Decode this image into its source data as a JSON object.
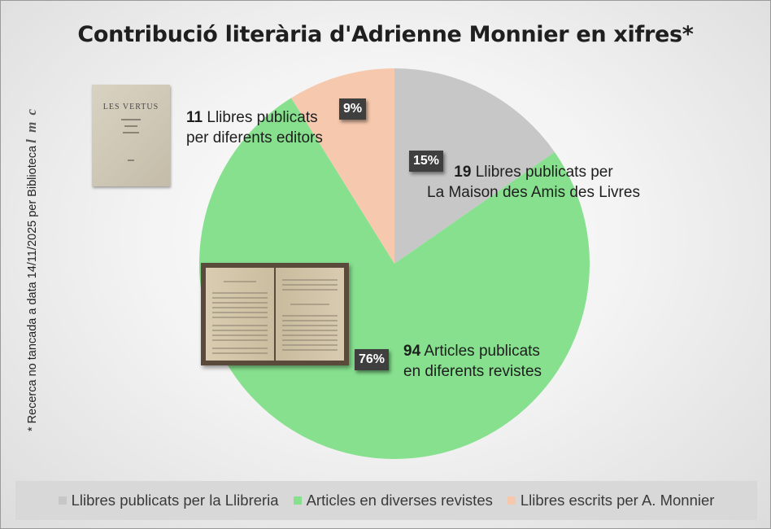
{
  "chart_data": {
    "type": "pie",
    "title": "Contribució literària d'Adrienne Monnier en xifres*",
    "side_note": "* Recerca no tancada a data 14/11/2025 per Biblioteca",
    "side_note_logo": "l m c",
    "slices": [
      {
        "legend": "Llibres publicats per la Llibreria",
        "value": 19,
        "percent_label": "15%",
        "count_label": "19",
        "desc_line1": "Llibres publicats per",
        "desc_line2": "La Maison des Amis des Livres",
        "color": "#c7c7c7"
      },
      {
        "legend": "Articles en diverses revistes",
        "value": 94,
        "percent_label": "76%",
        "count_label": "94",
        "desc_line1": "Articles publicats",
        "desc_line2": "en diferents revistes",
        "color": "#86e08e"
      },
      {
        "legend": "Llibres escrits per A. Monnier",
        "value": 11,
        "percent_label": "9%",
        "count_label": "11",
        "desc_line1": "Llibres publicats",
        "desc_line2": "per diferents editors",
        "color": "#f6c9ae"
      }
    ],
    "legend_position": "bottom"
  },
  "images": {
    "book_cover_title": "LES VERTUS"
  }
}
